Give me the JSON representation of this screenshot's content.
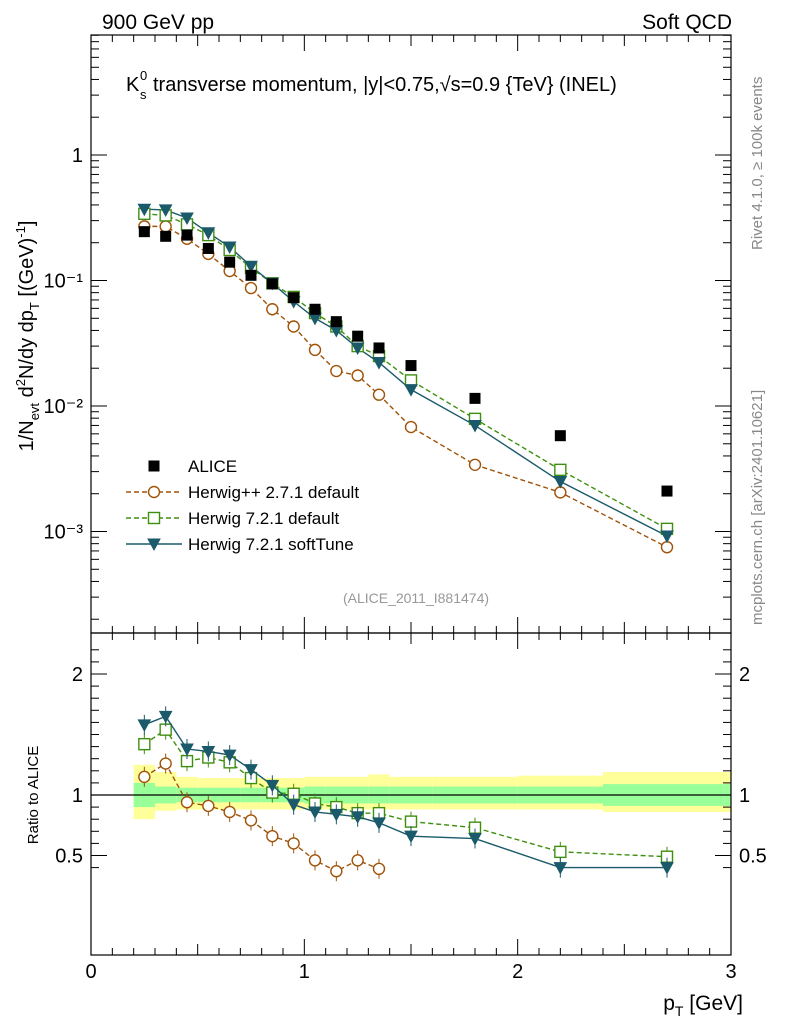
{
  "header": {
    "left": "900 GeV pp",
    "right": "Soft QCD"
  },
  "side_labels": {
    "rivet": "Rivet 4.1.0, ≥ 100k events",
    "mcplots": "mcplots.cern.ch [arXiv:2401.10621]"
  },
  "chart_data": {
    "type": "scatter",
    "title": "K_s^0 transverse momentum, |y|<0.75, √s=0.9 {TeV} (INEL)",
    "analysis_id": "(ALICE_2011_I881474)",
    "xlabel": "p_T [GeV]",
    "ylabel": "1/N_evt d²N/dy dp_T [(GeV)⁻¹]",
    "ratio_ylabel": "Ratio to ALICE",
    "yscale": "log",
    "xlim": [
      0,
      3
    ],
    "ylim": [
      0.00015,
      5
    ],
    "ratio_ylim": [
      0.35,
      2.3
    ],
    "x_ticks": [
      "0",
      "1",
      "2",
      "3"
    ],
    "y_ticks": [
      "1",
      "10⁻¹",
      "10⁻²",
      "10⁻³"
    ],
    "ratio_ticks": [
      "2",
      "1",
      "0.5"
    ],
    "legend_position": "lower-left",
    "data": {
      "name": "ALICE",
      "color": "#000000",
      "x": [
        0.25,
        0.35,
        0.45,
        0.55,
        0.65,
        0.75,
        0.85,
        0.95,
        1.05,
        1.15,
        1.25,
        1.35,
        1.5,
        1.8,
        2.2,
        2.7
      ],
      "y": [
        0.245,
        0.225,
        0.23,
        0.18,
        0.14,
        0.11,
        0.094,
        0.073,
        0.059,
        0.047,
        0.036,
        0.029,
        0.021,
        0.0115,
        0.0058,
        0.0021
      ]
    },
    "series": [
      {
        "name": "Herwig++ 2.7.1 default",
        "color": "#a05208",
        "marker": "open-circle",
        "dashed": true,
        "x": [
          0.25,
          0.35,
          0.45,
          0.55,
          0.65,
          0.75,
          0.85,
          0.95,
          1.05,
          1.15,
          1.25,
          1.35,
          1.5,
          1.8,
          2.2,
          2.7
        ],
        "y": [
          0.27,
          0.27,
          0.215,
          0.163,
          0.119,
          0.087,
          0.059,
          0.043,
          0.028,
          0.019,
          0.0175,
          0.0123,
          0.0068,
          0.0034,
          0.00205,
          0.00075
        ],
        "ratio": [
          1.15,
          1.26,
          0.94,
          0.91,
          0.86,
          0.79,
          0.66,
          0.6,
          0.46,
          0.37,
          0.46,
          0.39,
          null,
          null,
          null,
          null
        ]
      },
      {
        "name": "Herwig 7.2.1 default",
        "color": "#3f8f0f",
        "marker": "open-square",
        "dashed": true,
        "x": [
          0.25,
          0.35,
          0.45,
          0.55,
          0.65,
          0.75,
          0.85,
          0.95,
          1.05,
          1.15,
          1.25,
          1.35,
          1.5,
          1.8,
          2.2,
          2.7
        ],
        "y": [
          0.34,
          0.33,
          0.28,
          0.23,
          0.175,
          0.126,
          0.095,
          0.074,
          0.055,
          0.043,
          0.03,
          0.025,
          0.016,
          0.0079,
          0.0031,
          0.00105
        ],
        "ratio": [
          1.42,
          1.54,
          1.28,
          1.31,
          1.27,
          1.14,
          1.02,
          1.01,
          0.93,
          0.9,
          0.85,
          0.85,
          0.78,
          0.73,
          0.53,
          0.49
        ]
      },
      {
        "name": "Herwig 7.2.1 softTune",
        "color": "#1a5a6a",
        "marker": "filled-triangle-down",
        "dashed": false,
        "x": [
          0.25,
          0.35,
          0.45,
          0.55,
          0.65,
          0.75,
          0.85,
          0.95,
          1.05,
          1.15,
          1.25,
          1.35,
          1.5,
          1.8,
          2.2,
          2.7
        ],
        "y": [
          0.37,
          0.365,
          0.315,
          0.24,
          0.185,
          0.13,
          0.095,
          0.068,
          0.05,
          0.04,
          0.029,
          0.0222,
          0.0135,
          0.007,
          0.0025,
          0.00092
        ],
        "ratio": [
          1.58,
          1.65,
          1.38,
          1.36,
          1.33,
          1.21,
          1.08,
          0.92,
          0.86,
          0.84,
          0.82,
          0.77,
          0.66,
          0.64,
          0.4,
          0.4
        ]
      }
    ],
    "uncertainty_bands": {
      "x_edges": [
        0.2,
        0.3,
        0.4,
        0.5,
        0.6,
        0.7,
        0.8,
        0.9,
        1.0,
        1.1,
        1.2,
        1.3,
        1.4,
        1.6,
        2.0,
        2.4,
        3.0
      ],
      "inner": [
        [
          0.9,
          1.1
        ],
        [
          0.93,
          1.07
        ],
        [
          0.94,
          1.06
        ],
        [
          0.94,
          1.06
        ],
        [
          0.94,
          1.06
        ],
        [
          0.94,
          1.06
        ],
        [
          0.94,
          1.06
        ],
        [
          0.94,
          1.06
        ],
        [
          0.93,
          1.07
        ],
        [
          0.93,
          1.07
        ],
        [
          0.93,
          1.07
        ],
        [
          0.93,
          1.07
        ],
        [
          0.93,
          1.07
        ],
        [
          0.93,
          1.07
        ],
        [
          0.93,
          1.07
        ],
        [
          0.91,
          1.09
        ]
      ],
      "outer": [
        [
          0.8,
          1.25
        ],
        [
          0.87,
          1.19
        ],
        [
          0.88,
          1.15
        ],
        [
          0.88,
          1.14
        ],
        [
          0.88,
          1.14
        ],
        [
          0.88,
          1.14
        ],
        [
          0.88,
          1.14
        ],
        [
          0.88,
          1.14
        ],
        [
          0.88,
          1.15
        ],
        [
          0.88,
          1.15
        ],
        [
          0.88,
          1.15
        ],
        [
          0.88,
          1.17
        ],
        [
          0.88,
          1.15
        ],
        [
          0.88,
          1.15
        ],
        [
          0.88,
          1.16
        ],
        [
          0.86,
          1.19
        ]
      ],
      "inner_color": "#99ff99",
      "outer_color": "#ffff99"
    }
  }
}
